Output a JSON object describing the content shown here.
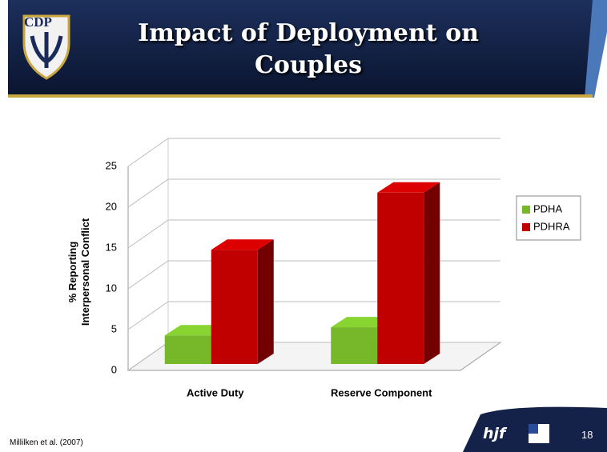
{
  "slide": {
    "title": "Impact of Deployment on Couples",
    "logo": "CDP",
    "sponsor": "hjf",
    "page_number": "18",
    "footnote": "Millilken et al. (2007)"
  },
  "chart_data": {
    "type": "bar3d",
    "ylabel": [
      "% Reporting",
      "Interpersonal Conflict"
    ],
    "categories": [
      "Active Duty",
      "Reserve Component"
    ],
    "series": [
      {
        "name": "PDHA",
        "color": "#76b82a",
        "values": [
          3.5,
          4.5
        ]
      },
      {
        "name": "PDHRA",
        "color": "#c00000",
        "values": [
          14,
          21
        ]
      }
    ],
    "ylim": [
      0,
      25
    ],
    "yticks": [
      0,
      5,
      10,
      15,
      20,
      25
    ],
    "grid": true,
    "legend": "right"
  }
}
